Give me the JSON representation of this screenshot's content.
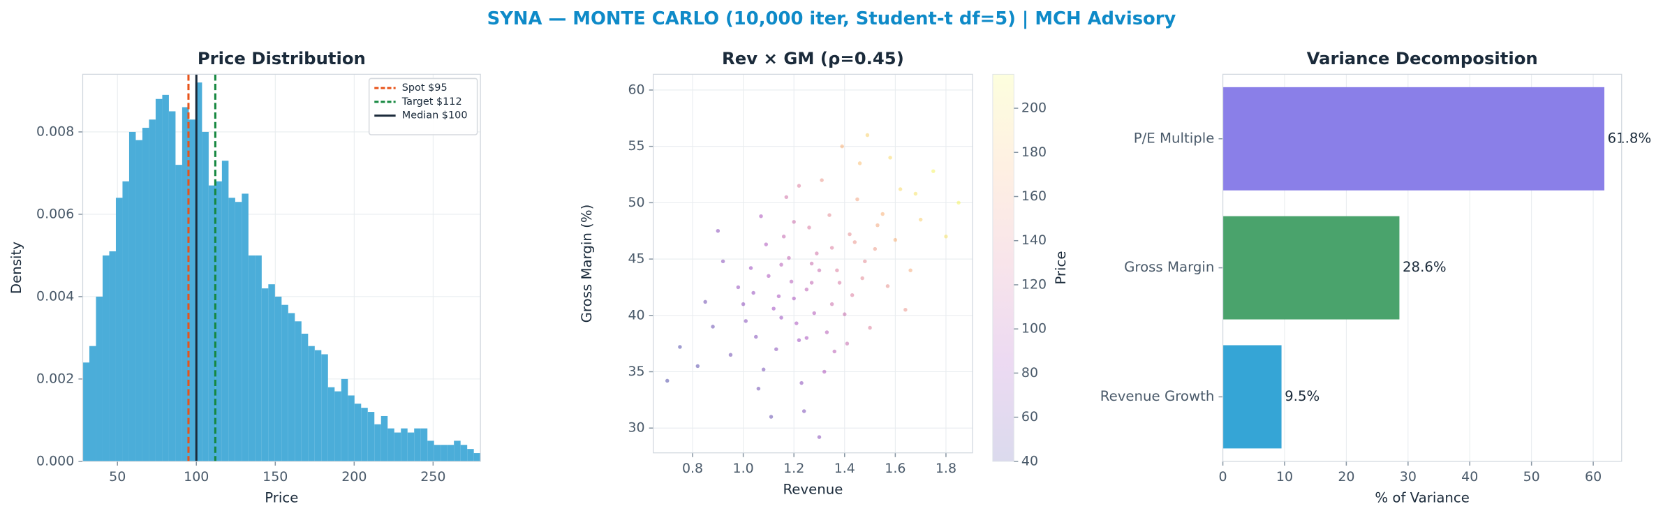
{
  "title": "SYNA — MONTE CARLO (10,000 iter, Student-t df=5) | MCH Advisory",
  "chart_data": [
    {
      "type": "histogram",
      "title": "Price Distribution",
      "xlabel": "Price",
      "ylabel": "Density",
      "color": "#4badd9",
      "grid": true,
      "bins": [
        28.0,
        32.2,
        36.4,
        40.6,
        44.8,
        49.0,
        53.2,
        57.4,
        61.6,
        65.8,
        70.0,
        74.2,
        78.4,
        82.6,
        86.8,
        91.0,
        95.2,
        99.4,
        103.6,
        107.8,
        112.0,
        116.2,
        120.4,
        124.6,
        128.8,
        133.0,
        137.2,
        141.4,
        145.6,
        149.8,
        154.0,
        158.2,
        162.4,
        166.6,
        170.8,
        175.0,
        179.2,
        183.4,
        187.6,
        191.8,
        196.0,
        200.2,
        204.4,
        208.6,
        212.8,
        217.0,
        221.2,
        225.4,
        229.6,
        233.8,
        238.0,
        242.2,
        246.4,
        250.6,
        254.8,
        259.0,
        263.2,
        267.4,
        271.6,
        275.8,
        280.0
      ],
      "counts": [
        0.0024,
        0.0028,
        0.004,
        0.005,
        0.0051,
        0.0064,
        0.0068,
        0.008,
        0.0078,
        0.0081,
        0.0083,
        0.0088,
        0.0089,
        0.0085,
        0.0072,
        0.0086,
        0.0083,
        0.0092,
        0.008,
        0.0067,
        0.0068,
        0.0073,
        0.0064,
        0.0063,
        0.0065,
        0.005,
        0.005,
        0.0042,
        0.0043,
        0.004,
        0.0038,
        0.0036,
        0.0034,
        0.0031,
        0.0028,
        0.0027,
        0.0026,
        0.0018,
        0.0017,
        0.002,
        0.0016,
        0.0014,
        0.0013,
        0.0012,
        0.0009,
        0.0011,
        0.0008,
        0.0007,
        0.0008,
        0.0007,
        0.0008,
        0.0008,
        0.0005,
        0.0004,
        0.0004,
        0.0004,
        0.0005,
        0.0004,
        0.0003,
        0.0002
      ],
      "vlines": [
        {
          "name": "Spot $95",
          "value": 95,
          "color": "#e8531a",
          "style": "dashed"
        },
        {
          "name": "Target $112",
          "value": 112,
          "color": "#15873f",
          "style": "dashed"
        },
        {
          "name": "Median $100",
          "value": 100,
          "color": "#1a2a3a",
          "style": "solid"
        }
      ],
      "legend": "upper right",
      "xlim": [
        28,
        280
      ],
      "xticks": [
        50,
        100,
        150,
        200,
        250
      ],
      "ylim": [
        0,
        0.0094
      ],
      "yticks": [
        {
          "value": 0,
          "label": "0.000"
        },
        {
          "value": 0.002,
          "label": "0.002"
        },
        {
          "value": 0.004,
          "label": "0.004"
        },
        {
          "value": 0.006,
          "label": "0.006"
        },
        {
          "value": 0.008,
          "label": "0.008"
        }
      ]
    },
    {
      "type": "scatter",
      "title": "Rev × GM (ρ=0.45)",
      "xlabel": "Revenue",
      "ylabel": "Gross Margin (%)",
      "colorbar_label": "Price",
      "colormap": "plasma",
      "grid": true,
      "x": [
        1.2,
        1.3,
        1.15,
        1.42,
        1.05,
        1.25,
        1.35,
        1.1,
        1.55,
        0.95,
        1.28,
        1.18,
        1.48,
        1.0,
        1.62,
        1.22,
        1.38,
        1.12,
        1.45,
        0.88,
        1.33,
        1.26,
        1.08,
        1.52,
        1.19,
        1.4,
        1.03,
        1.7,
        1.23,
        1.31,
        0.98,
        1.57,
        1.16,
        1.36,
        1.46,
        0.82,
        1.27,
        1.21,
        1.6,
        1.13,
        1.43,
        1.09,
        1.75,
        1.34,
        0.92,
        1.5,
        1.24,
        1.17,
        1.66,
        1.06,
        1.29,
        1.39,
        1.14,
        0.75,
        1.53,
        1.32,
        1.01,
        1.47,
        1.2,
        1.8,
        1.11,
        1.37,
        0.9,
        1.58,
        1.25,
        1.44,
        1.04,
        1.64,
        1.3,
        1.22,
        0.85,
        1.41,
        1.15,
        1.68,
        1.35,
        1.07,
        1.49,
        1.27,
        0.7,
        1.85
      ],
      "y": [
        41.5,
        44.0,
        39.8,
        47.2,
        38.1,
        42.3,
        46.0,
        43.5,
        49.0,
        36.5,
        40.2,
        45.1,
        44.8,
        41.0,
        51.2,
        37.8,
        42.9,
        40.6,
        50.3,
        39.0,
        38.5,
        47.8,
        35.2,
        45.9,
        43.0,
        40.1,
        44.2,
        48.5,
        34.0,
        52.0,
        42.5,
        42.6,
        47.0,
        36.8,
        53.5,
        35.5,
        44.6,
        39.3,
        46.7,
        37.0,
        41.8,
        46.3,
        52.8,
        48.9,
        44.8,
        38.9,
        31.5,
        50.5,
        44.0,
        33.5,
        45.5,
        55.0,
        41.7,
        37.2,
        48.0,
        35.0,
        39.5,
        43.3,
        48.3,
        47.0,
        31.0,
        44.0,
        47.5,
        54.0,
        38.0,
        46.5,
        42.0,
        40.5,
        29.2,
        51.5,
        41.2,
        37.5,
        44.5,
        50.8,
        41.0,
        48.8,
        56.0,
        42.9,
        34.2,
        50.0
      ],
      "c": [
        88,
        110,
        78,
        142,
        65,
        102,
        128,
        90,
        170,
        55,
        95,
        105,
        140,
        72,
        195,
        80,
        122,
        82,
        160,
        52,
        98,
        125,
        58,
        152,
        96,
        112,
        80,
        188,
        70,
        150,
        75,
        145,
        108,
        100,
        178,
        45,
        112,
        88,
        170,
        68,
        128,
        92,
        210,
        140,
        68,
        130,
        62,
        118,
        165,
        55,
        118,
        170,
        88,
        42,
        162,
        92,
        66,
        138,
        115,
        200,
        50,
        128,
        70,
        195,
        88,
        148,
        76,
        148,
        68,
        128,
        55,
        110,
        98,
        200,
        115,
        90,
        190,
        105,
        40,
        212
      ],
      "xlim": [
        0.645,
        1.905
      ],
      "xticks": [
        0.8,
        {
          "value": 1,
          "label": "1.0"
        },
        1.2,
        1.4,
        1.6,
        1.8
      ],
      "ylim": [
        27.8,
        61.4
      ],
      "yticks": [
        30,
        35,
        40,
        45,
        50,
        55,
        60
      ],
      "clim": [
        40,
        215.4
      ],
      "cticks": [
        40,
        60,
        80,
        100,
        120,
        140,
        160,
        180,
        200
      ]
    },
    {
      "type": "barh",
      "title": "Variance Decomposition",
      "xlabel": "% of Variance",
      "grid": true,
      "categories": [
        "P/E Multiple",
        "Gross Margin",
        "Revenue Growth"
      ],
      "values": [
        61.8,
        28.6,
        9.5
      ],
      "value_labels": [
        "61.8%",
        "28.6%",
        "9.5%"
      ],
      "colors": [
        "#8a7fe8",
        "#4aa36c",
        "#35a5d6"
      ],
      "xlim": [
        0,
        64.6
      ],
      "xticks": [
        0,
        10,
        20,
        30,
        40,
        50,
        60
      ]
    }
  ]
}
